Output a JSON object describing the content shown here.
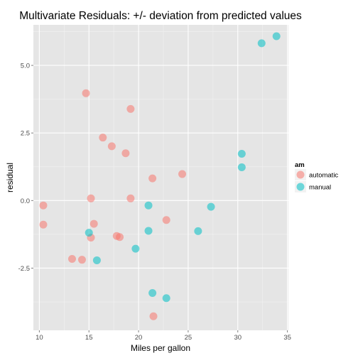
{
  "chart_data": {
    "type": "scatter",
    "title": "Multivariate Residuals: +/- deviation from predicted values",
    "xlabel": "Miles per gallon",
    "ylabel": "residual",
    "xlim": [
      9.4,
      35.1
    ],
    "ylim": [
      -4.8,
      6.5
    ],
    "x_ticks": [
      10,
      15,
      20,
      25,
      30,
      35
    ],
    "y_ticks": [
      -2.5,
      0.0,
      2.5,
      5.0
    ],
    "x_tick_labels": [
      "10",
      "15",
      "20",
      "25",
      "30",
      "35"
    ],
    "y_tick_labels": [
      "-2.5",
      "0.0",
      "2.5",
      "5.0"
    ],
    "grid": true,
    "legend": {
      "title": "am",
      "placement": "right"
    },
    "colors": {
      "automatic": "#f8766d",
      "manual": "#00bfc4",
      "panel": "#e5e5e5",
      "grid": "#ffffff"
    },
    "series": [
      {
        "name": "automatic",
        "points": [
          {
            "x": 14.7,
            "y": 3.97
          },
          {
            "x": 19.2,
            "y": 3.39
          },
          {
            "x": 16.4,
            "y": 2.33
          },
          {
            "x": 17.3,
            "y": 2.01
          },
          {
            "x": 18.7,
            "y": 1.75
          },
          {
            "x": 24.4,
            "y": 0.98
          },
          {
            "x": 21.4,
            "y": 0.82
          },
          {
            "x": 15.2,
            "y": 0.08
          },
          {
            "x": 19.2,
            "y": 0.08
          },
          {
            "x": 10.4,
            "y": -0.18
          },
          {
            "x": 10.4,
            "y": -0.89
          },
          {
            "x": 15.5,
            "y": -0.86
          },
          {
            "x": 22.8,
            "y": -0.72
          },
          {
            "x": 17.8,
            "y": -1.31
          },
          {
            "x": 18.1,
            "y": -1.35
          },
          {
            "x": 15.2,
            "y": -1.37
          },
          {
            "x": 13.3,
            "y": -2.16
          },
          {
            "x": 14.3,
            "y": -2.19
          },
          {
            "x": 21.5,
            "y": -4.28
          }
        ]
      },
      {
        "name": "manual",
        "points": [
          {
            "x": 33.9,
            "y": 6.08
          },
          {
            "x": 32.4,
            "y": 5.82
          },
          {
            "x": 30.4,
            "y": 1.73
          },
          {
            "x": 30.4,
            "y": 1.23
          },
          {
            "x": 21.0,
            "y": -0.18
          },
          {
            "x": 27.3,
            "y": -0.23
          },
          {
            "x": 15.0,
            "y": -1.19
          },
          {
            "x": 21.0,
            "y": -1.12
          },
          {
            "x": 26.0,
            "y": -1.13
          },
          {
            "x": 19.7,
            "y": -1.78
          },
          {
            "x": 15.8,
            "y": -2.21
          },
          {
            "x": 21.4,
            "y": -3.42
          },
          {
            "x": 22.8,
            "y": -3.61
          }
        ]
      }
    ]
  }
}
